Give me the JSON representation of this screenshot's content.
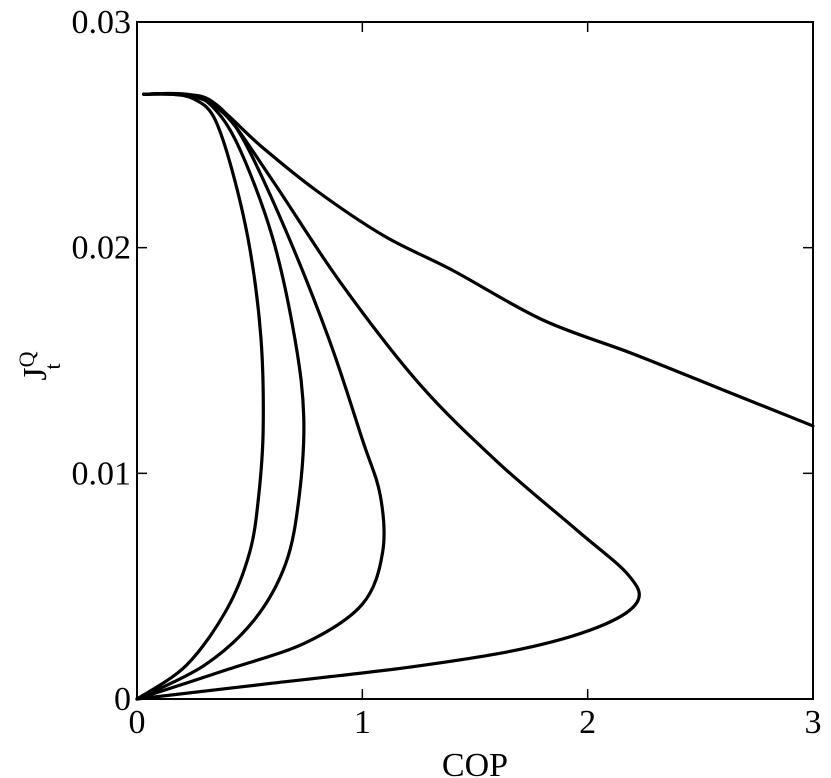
{
  "chart_data": {
    "type": "line",
    "title": "",
    "xlabel": "COP",
    "ylabel": {
      "main": "J",
      "sup": "Q",
      "sub": "t"
    },
    "xlim": [
      0,
      3
    ],
    "ylim": [
      0,
      0.03
    ],
    "xticks": [
      0,
      1,
      2,
      3
    ],
    "xtick_labels": [
      "0",
      "1",
      "2",
      "3"
    ],
    "yticks": [
      0,
      0.01,
      0.02,
      0.03
    ],
    "ytick_labels": [
      "0",
      "0.01",
      "0.02",
      "0.03"
    ],
    "grid": false,
    "legend": "none",
    "line_color": "#000000",
    "series": [
      {
        "points": [
          [
            0.0,
            0.0
          ],
          [
            0.22,
            0.0015
          ],
          [
            0.4,
            0.004
          ],
          [
            0.5,
            0.0065
          ],
          [
            0.54,
            0.009
          ],
          [
            0.56,
            0.012
          ],
          [
            0.55,
            0.016
          ],
          [
            0.5,
            0.02
          ],
          [
            0.42,
            0.0235
          ],
          [
            0.34,
            0.0258
          ],
          [
            0.25,
            0.0266
          ],
          [
            0.15,
            0.0268
          ],
          [
            0.03,
            0.0268
          ]
        ]
      },
      {
        "points": [
          [
            0.0,
            0.0
          ],
          [
            0.3,
            0.0015
          ],
          [
            0.52,
            0.0035
          ],
          [
            0.66,
            0.006
          ],
          [
            0.72,
            0.009
          ],
          [
            0.74,
            0.0125
          ],
          [
            0.7,
            0.016
          ],
          [
            0.6,
            0.0205
          ],
          [
            0.45,
            0.0245
          ],
          [
            0.33,
            0.0263
          ],
          [
            0.22,
            0.0268
          ],
          [
            0.03,
            0.0268
          ]
        ]
      },
      {
        "points": [
          [
            0.0,
            0.0
          ],
          [
            0.4,
            0.0013
          ],
          [
            0.75,
            0.0025
          ],
          [
            1.0,
            0.0042
          ],
          [
            1.09,
            0.0065
          ],
          [
            1.08,
            0.009
          ],
          [
            1.0,
            0.0115
          ],
          [
            0.85,
            0.016
          ],
          [
            0.65,
            0.021
          ],
          [
            0.46,
            0.025
          ],
          [
            0.33,
            0.0265
          ],
          [
            0.2,
            0.0268
          ],
          [
            0.03,
            0.0268
          ]
        ]
      },
      {
        "points": [
          [
            0.0,
            0.0
          ],
          [
            0.6,
            0.0007
          ],
          [
            1.2,
            0.0014
          ],
          [
            1.7,
            0.0022
          ],
          [
            2.05,
            0.0032
          ],
          [
            2.22,
            0.0043
          ],
          [
            2.18,
            0.0055
          ],
          [
            1.95,
            0.0075
          ],
          [
            1.6,
            0.0105
          ],
          [
            1.25,
            0.014
          ],
          [
            0.9,
            0.0185
          ],
          [
            0.6,
            0.023
          ],
          [
            0.4,
            0.0258
          ],
          [
            0.25,
            0.0267
          ],
          [
            0.03,
            0.0268
          ]
        ]
      },
      {
        "points": [
          [
            0.03,
            0.0268
          ],
          [
            0.2,
            0.0268
          ],
          [
            0.35,
            0.0263
          ],
          [
            0.55,
            0.0245
          ],
          [
            0.8,
            0.0225
          ],
          [
            1.1,
            0.0205
          ],
          [
            1.4,
            0.019
          ],
          [
            1.8,
            0.0168
          ],
          [
            2.2,
            0.0153
          ],
          [
            2.6,
            0.0137
          ],
          [
            3.0,
            0.0121
          ]
        ]
      }
    ]
  }
}
